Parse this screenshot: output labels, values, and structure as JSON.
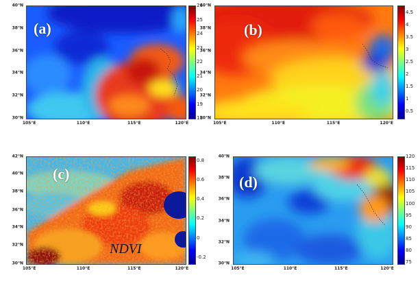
{
  "caption": "NDVI",
  "panels": {
    "a": {
      "label": "(a)",
      "yticks": [
        "40°N",
        "38°N",
        "36°N",
        "34°N",
        "32°N",
        "30°N"
      ],
      "xticks": [
        "105°E",
        "110°E",
        "115°E",
        "120°E"
      ],
      "colorbar": [
        "26",
        "25",
        "24",
        "23",
        "22",
        "21",
        "20",
        "19",
        "18"
      ]
    },
    "b": {
      "label": "(b)",
      "yticks": [
        "40°N",
        "38°N",
        "36°N",
        "34°N",
        "32°N",
        "30°N"
      ],
      "xticks": [
        "105°E",
        "110°E",
        "115°E",
        "120°E"
      ],
      "colorbar": [
        "4.5",
        "4",
        "3.5",
        "3",
        "2.5",
        "2",
        "1.5",
        "1",
        "0.5"
      ]
    },
    "c": {
      "label": "(c)",
      "yticks": [
        "42°N",
        "40°N",
        "38°N",
        "36°N",
        "34°N",
        "32°N",
        "30°N"
      ],
      "xticks": [
        "105°E",
        "110°E",
        "115°E",
        "120°E"
      ],
      "colorbar": [
        "0.8",
        "0.6",
        "0.4",
        "0.2",
        "0",
        "-0.2"
      ]
    },
    "d": {
      "label": "(d)",
      "yticks": [
        "40°N",
        "38°N",
        "36°N",
        "34°N",
        "32°N",
        "30°N"
      ],
      "xticks": [
        "105°E",
        "110°E",
        "115°E",
        "120°E"
      ],
      "colorbar": [
        "120",
        "115",
        "110",
        "105",
        "100",
        "95",
        "90",
        "85",
        "80",
        "75"
      ]
    }
  },
  "colors": {
    "jet": [
      "#00008f",
      "#0000ff",
      "#0080ff",
      "#00ffff",
      "#80ff80",
      "#ffff00",
      "#ff8000",
      "#ff0000",
      "#800000"
    ]
  }
}
